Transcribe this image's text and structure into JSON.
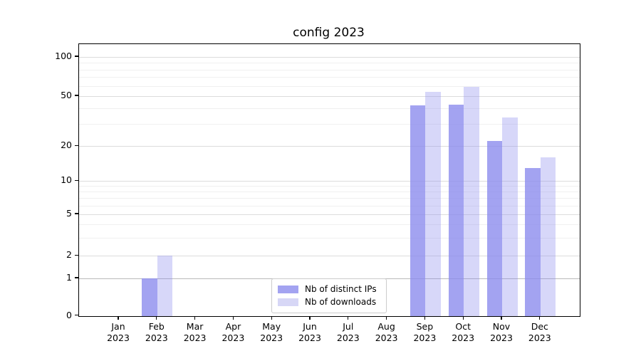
{
  "title": "config 2023",
  "legend": {
    "items": [
      {
        "label": "Nb of distinct IPs",
        "swatch_color": "#a3a3f1"
      },
      {
        "label": "Nb of downloads",
        "swatch_color": "#d7d7f6"
      }
    ]
  },
  "axes": {
    "y_tick_labels": [
      "0",
      "1",
      "2",
      "5",
      "10",
      "20",
      "50",
      "100"
    ],
    "x_tick_year": "2023",
    "x_tick_months": [
      "Jan",
      "Feb",
      "Mar",
      "Apr",
      "May",
      "Jun",
      "Jul",
      "Aug",
      "Sep",
      "Oct",
      "Nov",
      "Dec"
    ]
  },
  "colors": {
    "bar_ips_fill": "rgba(140,140,238,0.80)",
    "bar_downloads_fill": "rgba(140,140,238,0.35)",
    "grid_major": "#dcdcdc",
    "grid_minor": "#f0f0f0",
    "grid_unity_line": "#b9b9b9",
    "axis": "#000000"
  },
  "chart_data": {
    "type": "bar",
    "title": "config 2023",
    "categories": [
      "Jan 2023",
      "Feb 2023",
      "Mar 2023",
      "Apr 2023",
      "May 2023",
      "Jun 2023",
      "Jul 2023",
      "Aug 2023",
      "Sep 2023",
      "Oct 2023",
      "Nov 2023",
      "Dec 2023"
    ],
    "series": [
      {
        "name": "Nb of distinct IPs",
        "values": [
          0,
          1,
          0,
          0,
          0,
          0,
          0,
          0,
          42,
          43,
          22,
          13
        ]
      },
      {
        "name": "Nb of downloads",
        "values": [
          0,
          2,
          0,
          0,
          0,
          0,
          0,
          0,
          54,
          59,
          34,
          16
        ]
      }
    ],
    "xlabel": "",
    "ylabel": "",
    "yscale": "quasi-log (linear 0-1, compressed log above)",
    "y_major_ticks": [
      0,
      1,
      2,
      5,
      10,
      20,
      50,
      100
    ],
    "y_minor_gridlines": [
      3,
      4,
      6,
      7,
      8,
      9,
      30,
      40,
      60,
      70,
      80,
      90
    ],
    "ylim": [
      0,
      120
    ],
    "grid": "horizontal major + minor, drawn under translucent bars",
    "legend_position": "lower center, inside axes",
    "bar_layout": "two bars side by side per month, IPs left / downloads right"
  }
}
